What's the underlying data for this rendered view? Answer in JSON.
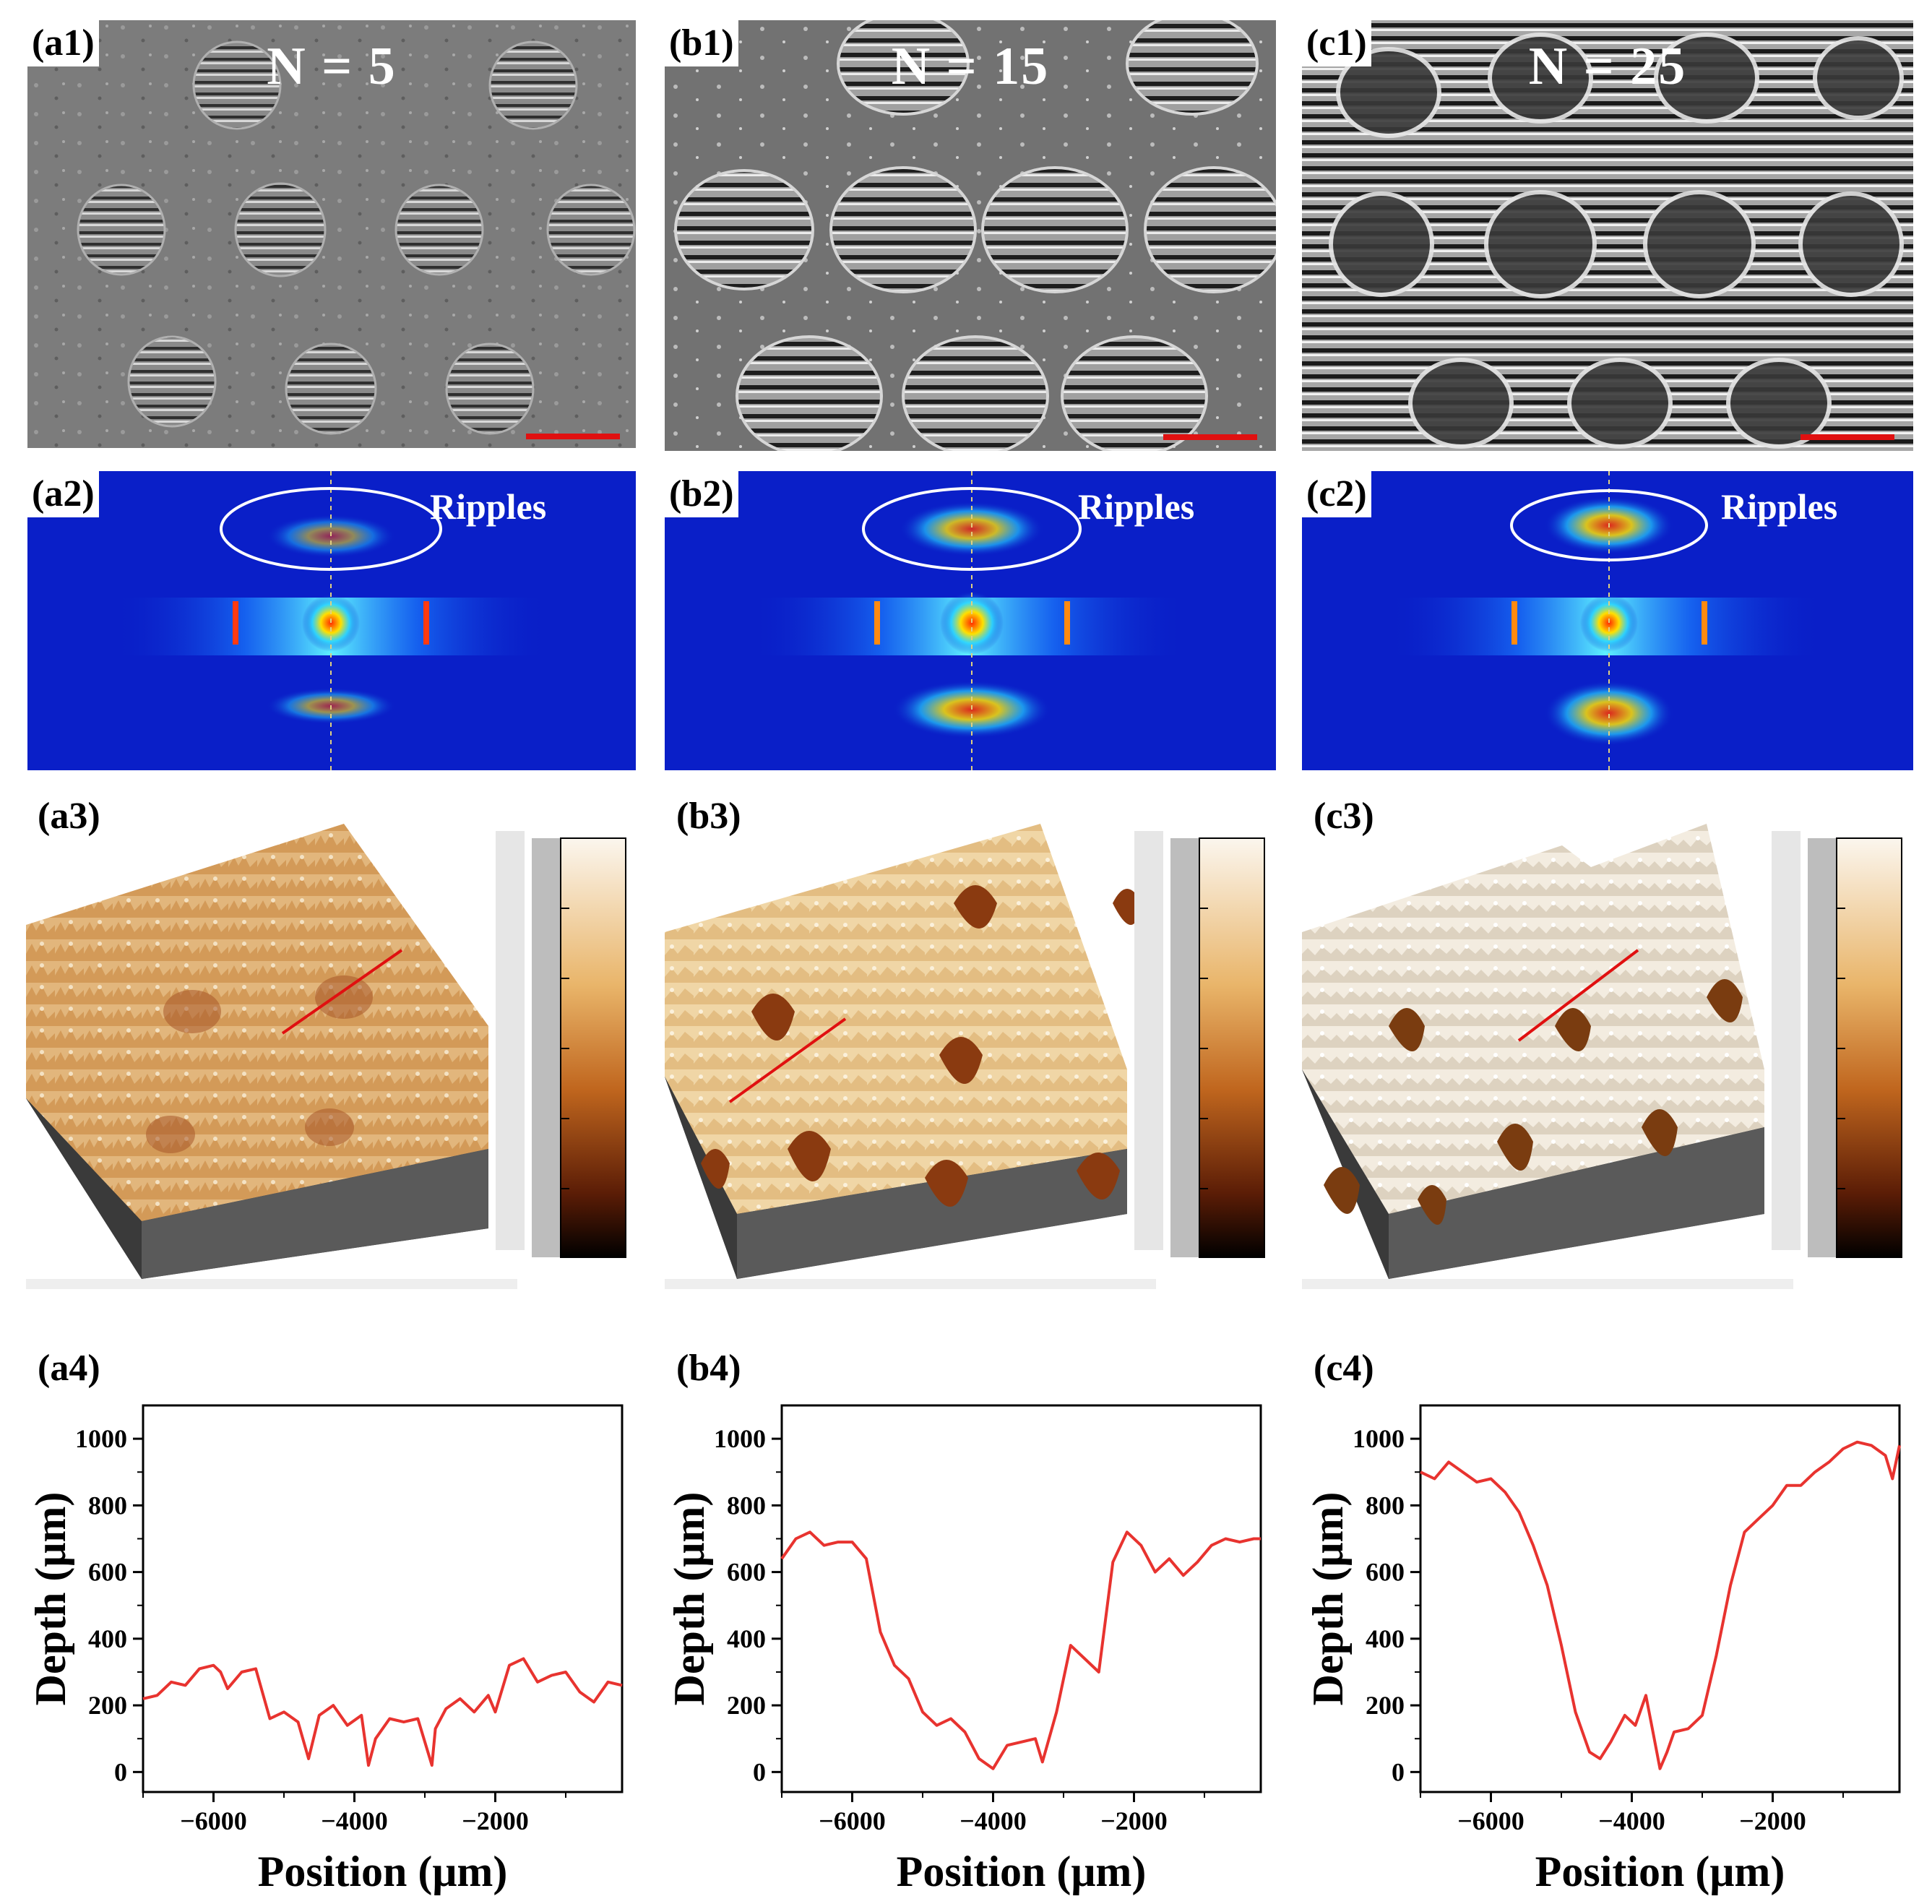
{
  "panels": [
    {
      "id": "a",
      "sem_label": "(a1)",
      "n_text": "N = 5",
      "fft_label": "(a2)",
      "fft_annot": "Ripples",
      "afm_label": "(a3)",
      "profile_label": "(a4)"
    },
    {
      "id": "b",
      "sem_label": "(b1)",
      "n_text": "N = 15",
      "fft_label": "(b2)",
      "fft_annot": "Ripples",
      "afm_label": "(b3)",
      "profile_label": "(b4)"
    },
    {
      "id": "c",
      "sem_label": "(c1)",
      "n_text": "N = 25",
      "fft_label": "(c2)",
      "fft_annot": "Ripples",
      "afm_label": "(c3)",
      "profile_label": "(c4)"
    }
  ],
  "colors": {
    "line": "#e8332f",
    "scale_bar": "#e01010",
    "fft_bg": "#0a1fc8",
    "afm_light": "#f2dfb8",
    "afm_dark": "#7a3c10"
  },
  "chart_data": [
    {
      "type": "line",
      "panel": "(a4)",
      "xlabel": "Position (μm)",
      "ylabel": "Depth (μm)",
      "xlim": [
        -7000,
        -200
      ],
      "ylim": [
        -60,
        1100
      ],
      "xticks": [
        -6000,
        -4000,
        -2000
      ],
      "yticks": [
        0,
        200,
        400,
        600,
        800,
        1000
      ],
      "series": [
        {
          "name": "N = 5",
          "x": [
            -7000,
            -6800,
            -6600,
            -6400,
            -6200,
            -6000,
            -5900,
            -5800,
            -5600,
            -5400,
            -5200,
            -5000,
            -4800,
            -4650,
            -4500,
            -4300,
            -4100,
            -3900,
            -3800,
            -3700,
            -3500,
            -3300,
            -3100,
            -2900,
            -2850,
            -2700,
            -2500,
            -2300,
            -2100,
            -2000,
            -1800,
            -1600,
            -1400,
            -1200,
            -1000,
            -800,
            -600,
            -400,
            -200
          ],
          "y": [
            220,
            230,
            270,
            260,
            310,
            320,
            300,
            250,
            300,
            310,
            160,
            180,
            150,
            40,
            170,
            200,
            140,
            170,
            20,
            100,
            160,
            150,
            160,
            20,
            130,
            190,
            220,
            180,
            230,
            180,
            320,
            340,
            270,
            290,
            300,
            240,
            210,
            270,
            260
          ]
        }
      ]
    },
    {
      "type": "line",
      "panel": "(b4)",
      "xlabel": "Position (μm)",
      "ylabel": "Depth (μm)",
      "xlim": [
        -7000,
        -200
      ],
      "ylim": [
        -60,
        1100
      ],
      "xticks": [
        -6000,
        -4000,
        -2000
      ],
      "yticks": [
        0,
        200,
        400,
        600,
        800,
        1000
      ],
      "series": [
        {
          "name": "N = 15",
          "x": [
            -7000,
            -6800,
            -6600,
            -6400,
            -6200,
            -6000,
            -5800,
            -5600,
            -5400,
            -5200,
            -5000,
            -4800,
            -4600,
            -4400,
            -4200,
            -4000,
            -3800,
            -3600,
            -3400,
            -3300,
            -3100,
            -2900,
            -2700,
            -2500,
            -2300,
            -2100,
            -1900,
            -1700,
            -1500,
            -1300,
            -1100,
            -900,
            -700,
            -500,
            -300,
            -200
          ],
          "y": [
            640,
            700,
            720,
            680,
            690,
            690,
            640,
            420,
            320,
            280,
            180,
            140,
            160,
            120,
            40,
            10,
            80,
            90,
            100,
            30,
            180,
            380,
            340,
            300,
            630,
            720,
            680,
            600,
            640,
            590,
            630,
            680,
            700,
            690,
            700,
            700
          ]
        }
      ]
    },
    {
      "type": "line",
      "panel": "(c4)",
      "xlabel": "Position (μm)",
      "ylabel": "Depth (μm)",
      "xlim": [
        -7000,
        -200
      ],
      "ylim": [
        -60,
        1100
      ],
      "xticks": [
        -6000,
        -4000,
        -2000
      ],
      "yticks": [
        0,
        200,
        400,
        600,
        800,
        1000
      ],
      "series": [
        {
          "name": "N = 25",
          "x": [
            -7000,
            -6800,
            -6600,
            -6400,
            -6200,
            -6000,
            -5800,
            -5600,
            -5400,
            -5200,
            -5000,
            -4800,
            -4600,
            -4450,
            -4300,
            -4100,
            -3950,
            -3800,
            -3700,
            -3600,
            -3500,
            -3400,
            -3200,
            -3000,
            -2800,
            -2600,
            -2400,
            -2200,
            -2000,
            -1800,
            -1600,
            -1400,
            -1200,
            -1000,
            -800,
            -600,
            -400,
            -300,
            -200
          ],
          "y": [
            900,
            880,
            930,
            900,
            870,
            880,
            840,
            780,
            680,
            560,
            380,
            180,
            60,
            40,
            90,
            170,
            140,
            230,
            120,
            10,
            60,
            120,
            130,
            170,
            350,
            560,
            720,
            760,
            800,
            860,
            860,
            900,
            930,
            970,
            990,
            980,
            950,
            880,
            980
          ]
        }
      ]
    }
  ]
}
